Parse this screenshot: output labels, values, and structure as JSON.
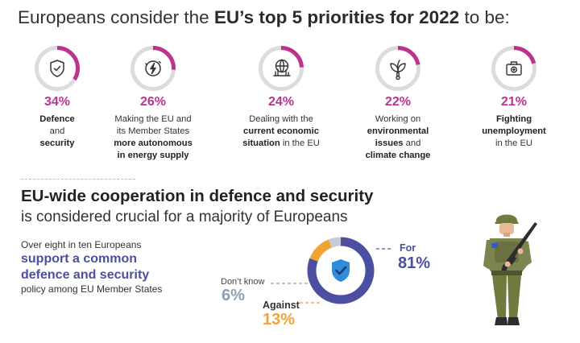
{
  "headline": {
    "prefix": "Europeans consider the ",
    "bold": "EU’s top 5 priorities for 2022",
    "suffix": " to be:"
  },
  "priorities": [
    {
      "percent": "34%",
      "value": 34,
      "icon": "shield-check-icon",
      "desc": [
        {
          "t": "Defence",
          "b": true
        },
        {
          "t": "and",
          "b": false
        },
        {
          "t": "security",
          "b": true
        }
      ]
    },
    {
      "percent": "26%",
      "value": 26,
      "icon": "energy-bolt-icon",
      "desc": [
        {
          "t": "Making the EU and",
          "b": false
        },
        {
          "t": "its Member States",
          "b": false
        },
        {
          "t": "more autonomous",
          "b": true
        },
        {
          "t": "in energy supply",
          "b": true
        }
      ]
    },
    {
      "percent": "24%",
      "value": 24,
      "icon": "globe-economy-icon",
      "desc": [
        {
          "t": "Dealing with the",
          "b": false
        },
        {
          "t": "current economic",
          "b": true
        },
        {
          "t": "situation",
          "b": true,
          "tail": " in the EU"
        }
      ]
    },
    {
      "percent": "22%",
      "value": 22,
      "icon": "leaf-thermometer-icon",
      "desc": [
        {
          "t": "Working on",
          "b": false
        },
        {
          "t": "environmental",
          "b": true
        },
        {
          "t": "issues",
          "b": true,
          "tail": " and"
        },
        {
          "t": "climate change",
          "b": true
        }
      ]
    },
    {
      "percent": "21%",
      "value": 21,
      "icon": "briefcase-icon",
      "desc": [
        {
          "t": "Fighting",
          "b": true
        },
        {
          "t": "unemployment",
          "b": true
        },
        {
          "t": "in the EU",
          "b": false
        }
      ]
    }
  ],
  "section": {
    "title": "EU-wide cooperation in defence and security",
    "subtitle": "is considered crucial for a majority of Europeans",
    "intro": "Over eight in ten Europeans",
    "highlight_line1": "support a common",
    "highlight_line2": "defence and security",
    "outro": "policy among EU Member States"
  },
  "poll": {
    "for_label": "For",
    "for_value": "81%",
    "for": 81,
    "dontknow_label": "Don’t know",
    "dontknow_value": "6%",
    "dontknow": 6,
    "against_label": "Against",
    "against_value": "13%",
    "against": 13
  },
  "colors": {
    "priority": "#b9338f",
    "for": "#4b4fa0",
    "against": "#f0a436",
    "dontknow": "#8ea0b4",
    "ring_bg": "#dcdcdc"
  }
}
